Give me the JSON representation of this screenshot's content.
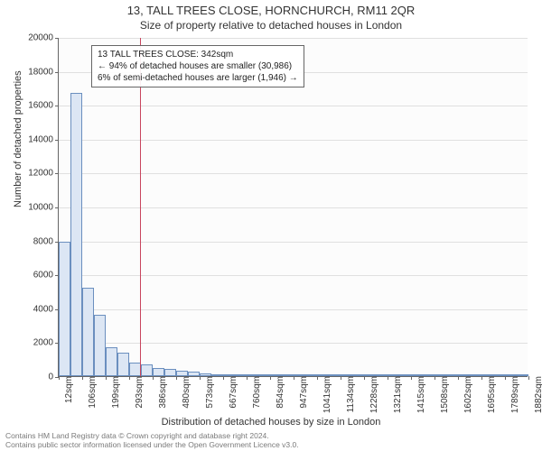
{
  "title": "13, TALL TREES CLOSE, HORNCHURCH, RM11 2QR",
  "subtitle": "Size of property relative to detached houses in London",
  "y_axis": {
    "title": "Number of detached properties",
    "min": 0,
    "max": 20000,
    "step": 2000,
    "ticks": [
      0,
      2000,
      4000,
      6000,
      8000,
      10000,
      12000,
      14000,
      16000,
      18000,
      20000
    ],
    "grid_color": "#e0e0e0",
    "label_fontsize": 10
  },
  "x_axis": {
    "title": "Distribution of detached houses by size in London",
    "labels": [
      "12sqm",
      "106sqm",
      "199sqm",
      "293sqm",
      "386sqm",
      "480sqm",
      "573sqm",
      "667sqm",
      "760sqm",
      "854sqm",
      "947sqm",
      "1041sqm",
      "1134sqm",
      "1228sqm",
      "1321sqm",
      "1415sqm",
      "1508sqm",
      "1602sqm",
      "1695sqm",
      "1789sqm",
      "1882sqm"
    ],
    "label_fontsize": 10
  },
  "histogram": {
    "type": "histogram",
    "bin_count": 40,
    "values": [
      7900,
      16700,
      5200,
      3600,
      1700,
      1400,
      800,
      700,
      500,
      400,
      300,
      250,
      150,
      120,
      90,
      80,
      60,
      50,
      40,
      30,
      25,
      18,
      15,
      12,
      10,
      8,
      6,
      5,
      4,
      3,
      3,
      2,
      2,
      2,
      1,
      1,
      1,
      1,
      1,
      1
    ],
    "bar_fill": "#dce6f4",
    "bar_stroke": "#6b8fbf",
    "background_color": "#fcfcfc"
  },
  "reference_line": {
    "value_sqm": 342,
    "x_min_sqm": 12,
    "x_max_sqm": 1920,
    "color": "#c8455e"
  },
  "annotation": {
    "lines": [
      "13 TALL TREES CLOSE: 342sqm",
      "← 94% of detached houses are smaller (30,986)",
      "6% of semi-detached houses are larger (1,946) →"
    ],
    "border_color": "#666666",
    "fontsize": 10
  },
  "footer": {
    "line1": "Contains HM Land Registry data © Crown copyright and database right 2024.",
    "line2": "Contains public sector information licensed under the Open Government Licence v3.0.",
    "color": "#7a7a7a"
  }
}
